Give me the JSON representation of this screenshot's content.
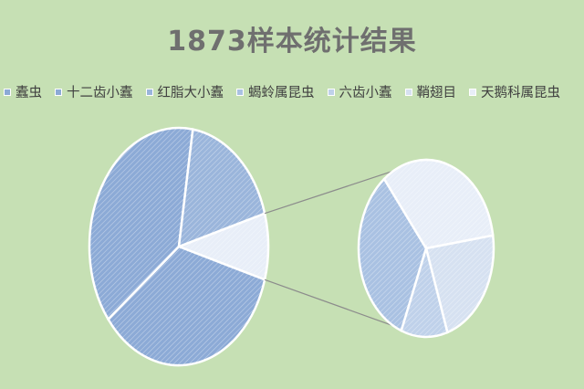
{
  "chart_data": {
    "type": "pie",
    "subtype": "pie-of-pie",
    "title": "1873样本统计结果",
    "legend_position": "top",
    "categories": [
      "蠹虫",
      "十二齿小蠹",
      "红脂大小蠹",
      "蝎蛉属昆虫",
      "六齿小蠹",
      "鞘翅目",
      "天鹅科属昆虫"
    ],
    "values": [
      35,
      38,
      18,
      3,
      1,
      2,
      3
    ],
    "secondary_plot_categories": [
      "蝎蛉属昆虫",
      "六齿小蠹",
      "鞘翅目",
      "天鹅科属昆虫"
    ],
    "colors": [
      "#8caad6",
      "#8caad6",
      "#9ab5db",
      "#a9c1e2",
      "#bfd1ea",
      "#d6e1f1",
      "#e8eef8"
    ]
  }
}
